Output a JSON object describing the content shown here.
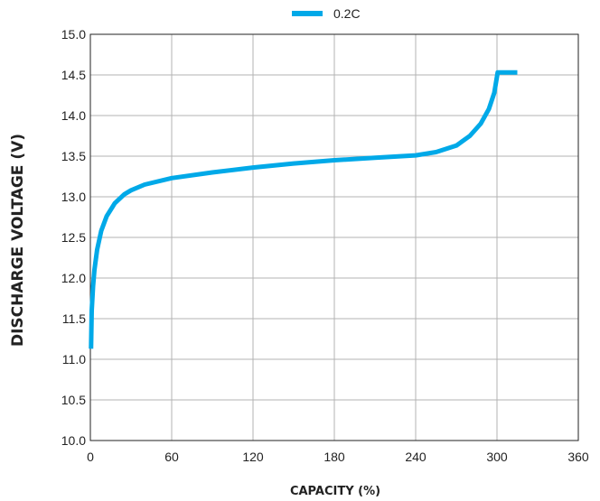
{
  "chart_data": {
    "type": "line",
    "ylabel": "DISCHARGE VOLTAGE (V)",
    "xlabel": "CAPACITY (%)",
    "xlim": [
      0,
      360
    ],
    "ylim": [
      10.0,
      15.0
    ],
    "x_ticks": [
      0,
      60,
      120,
      180,
      240,
      300,
      360
    ],
    "y_ticks": [
      10.0,
      10.5,
      11.0,
      11.5,
      12.0,
      12.5,
      13.0,
      13.5,
      14.0,
      14.5,
      15.0
    ],
    "x_tick_labels": [
      "0",
      "60",
      "120",
      "180",
      "240",
      "300",
      "360"
    ],
    "y_tick_labels": [
      "10.0",
      "10.5",
      "11.0",
      "11.5",
      "12.0",
      "12.5",
      "13.0",
      "13.5",
      "14.0",
      "14.5",
      "15.0"
    ],
    "grid": true,
    "legend_position": "top-center",
    "series": [
      {
        "name": "0.2C",
        "color": "#00a9e8",
        "x": [
          0.5,
          1,
          2,
          3,
          5,
          8,
          12,
          18,
          25,
          30,
          40,
          60,
          90,
          120,
          150,
          180,
          210,
          240,
          255,
          270,
          280,
          288,
          294,
          298,
          300,
          300.5,
          315
        ],
        "y": [
          11.13,
          11.6,
          11.9,
          12.1,
          12.35,
          12.58,
          12.76,
          12.92,
          13.03,
          13.08,
          13.15,
          13.23,
          13.3,
          13.36,
          13.41,
          13.45,
          13.48,
          13.51,
          13.55,
          13.63,
          13.75,
          13.9,
          14.08,
          14.28,
          14.48,
          14.53,
          14.53
        ]
      }
    ]
  }
}
